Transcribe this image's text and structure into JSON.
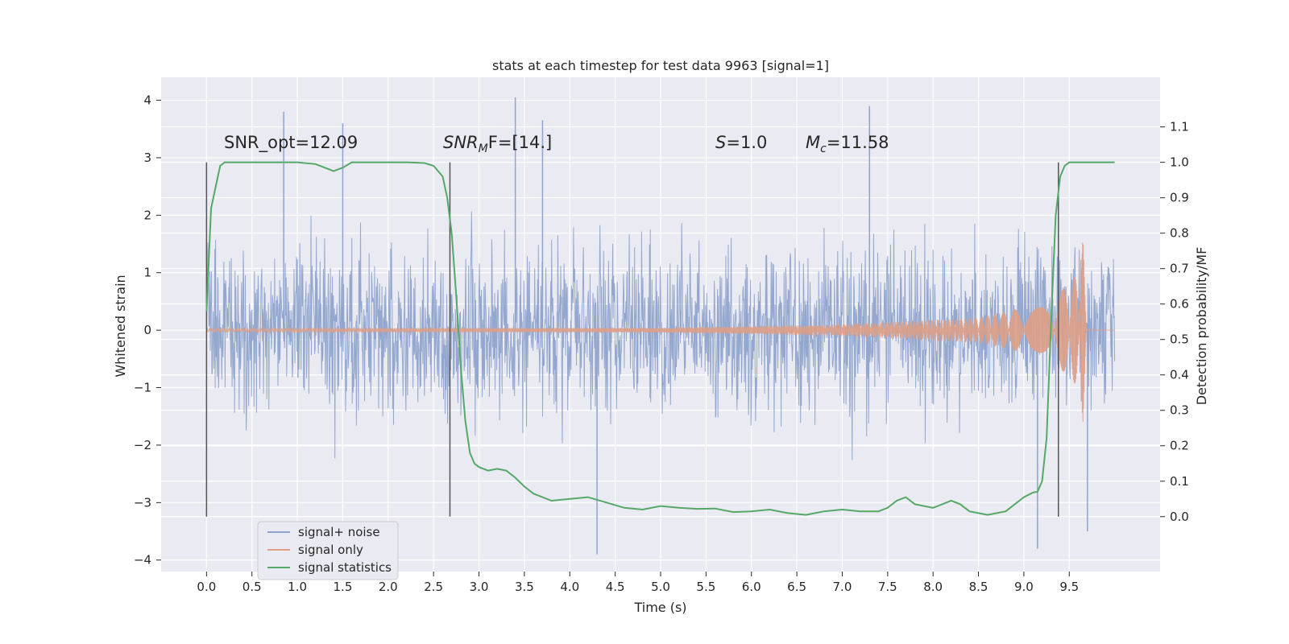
{
  "chart_data": {
    "type": "line",
    "title": "stats at each timestep for test data 9963 [signal=1]",
    "xlabel": "Time (s)",
    "ylabel": "Whitened strain",
    "ylabel_right": "Detection probability/MF",
    "xlim": [
      -0.5,
      10.5
    ],
    "ylim": [
      -4.2,
      4.4
    ],
    "ylim_right": [
      -0.155,
      1.24
    ],
    "x_ticks": [
      "0.0",
      "0.5",
      "1.0",
      "1.5",
      "2.0",
      "2.5",
      "3.0",
      "3.5",
      "4.0",
      "4.5",
      "5.0",
      "5.5",
      "6.0",
      "6.5",
      "7.0",
      "7.5",
      "8.0",
      "8.5",
      "9.0",
      "9.5"
    ],
    "y_ticks": [
      "4",
      "3",
      "2",
      "1",
      "0",
      "−1",
      "−2",
      "−3",
      "−4"
    ],
    "y_right_ticks": [
      "1.1",
      "1.0",
      "0.9",
      "0.8",
      "0.7",
      "0.6",
      "0.5",
      "0.4",
      "0.3",
      "0.2",
      "0.1",
      "0.0"
    ],
    "grid": true,
    "legend_position": "lower-left",
    "series": [
      {
        "name": "signal+ noise",
        "axis": "left",
        "color": "#8fa4cc",
        "x_range": [
          0.0,
          10.0
        ],
        "typical_amplitude": 1.3,
        "notable_peaks": [
          {
            "x": 0.85,
            "y": 3.8
          },
          {
            "x": 1.5,
            "y": 3.6
          },
          {
            "x": 3.4,
            "y": 4.05
          },
          {
            "x": 3.7,
            "y": 3.65
          },
          {
            "x": 7.3,
            "y": 3.9
          },
          {
            "x": 4.3,
            "y": -3.9
          },
          {
            "x": 9.15,
            "y": -3.8
          },
          {
            "x": 9.7,
            "y": -3.5
          }
        ]
      },
      {
        "name": "signal only",
        "axis": "left",
        "color": "#dd9f86",
        "x_range": [
          0.0,
          10.0
        ],
        "description_points": [
          {
            "x": 0.0,
            "amp": 0.03
          },
          {
            "x": 5.0,
            "amp": 0.04
          },
          {
            "x": 7.0,
            "amp": 0.1
          },
          {
            "x": 8.5,
            "amp": 0.22
          },
          {
            "x": 9.3,
            "amp": 0.5
          },
          {
            "x": 9.6,
            "amp": 1.0
          },
          {
            "x": 9.65,
            "amp": 1.6
          },
          {
            "x": 9.7,
            "amp": 0.0
          },
          {
            "x": 10.0,
            "amp": 0.0
          }
        ]
      },
      {
        "name": "signal statistics",
        "axis": "right",
        "color": "#55a868",
        "x": [
          0.0,
          0.05,
          0.1,
          0.15,
          0.2,
          0.3,
          0.5,
          0.8,
          1.0,
          1.2,
          1.3,
          1.4,
          1.5,
          1.6,
          1.8,
          2.0,
          2.2,
          2.4,
          2.5,
          2.6,
          2.65,
          2.7,
          2.75,
          2.8,
          2.85,
          2.9,
          2.95,
          3.0,
          3.1,
          3.2,
          3.3,
          3.4,
          3.5,
          3.6,
          3.8,
          4.0,
          4.2,
          4.4,
          4.6,
          4.8,
          5.0,
          5.2,
          5.4,
          5.6,
          5.8,
          6.0,
          6.2,
          6.4,
          6.6,
          6.8,
          7.0,
          7.2,
          7.4,
          7.5,
          7.6,
          7.7,
          7.8,
          7.9,
          8.0,
          8.1,
          8.2,
          8.3,
          8.4,
          8.6,
          8.8,
          9.0,
          9.1,
          9.15,
          9.2,
          9.25,
          9.3,
          9.35,
          9.4,
          9.45,
          9.5,
          9.6,
          9.8,
          10.0
        ],
        "y": [
          0.58,
          0.87,
          0.93,
          0.99,
          1.0,
          1.0,
          1.0,
          1.0,
          1.0,
          0.995,
          0.985,
          0.975,
          0.985,
          1.0,
          1.0,
          1.0,
          1.0,
          0.998,
          0.99,
          0.96,
          0.9,
          0.8,
          0.62,
          0.42,
          0.27,
          0.18,
          0.15,
          0.14,
          0.13,
          0.135,
          0.13,
          0.11,
          0.085,
          0.065,
          0.045,
          0.05,
          0.055,
          0.04,
          0.025,
          0.02,
          0.03,
          0.025,
          0.022,
          0.023,
          0.013,
          0.015,
          0.02,
          0.01,
          0.005,
          0.015,
          0.02,
          0.015,
          0.015,
          0.025,
          0.045,
          0.055,
          0.035,
          0.03,
          0.025,
          0.035,
          0.045,
          0.035,
          0.015,
          0.005,
          0.015,
          0.055,
          0.068,
          0.07,
          0.1,
          0.22,
          0.55,
          0.85,
          0.96,
          0.99,
          1.0,
          1.0,
          1.0,
          1.0
        ]
      }
    ],
    "vertical_lines_x": [
      0.0,
      2.68,
      9.38
    ],
    "annotations": [
      {
        "text": "SNR_opt=12.09",
        "x": 0.2
      },
      {
        "text": "SNR",
        "sub": "M",
        "after": "F=[14.]",
        "italic": true,
        "x": 2.6
      },
      {
        "text": "S",
        "after": "=1.0",
        "italic": true,
        "x": 5.6
      },
      {
        "text": "M",
        "sub": "c",
        "after": "=11.58",
        "italic": true,
        "x": 6.6
      }
    ]
  }
}
